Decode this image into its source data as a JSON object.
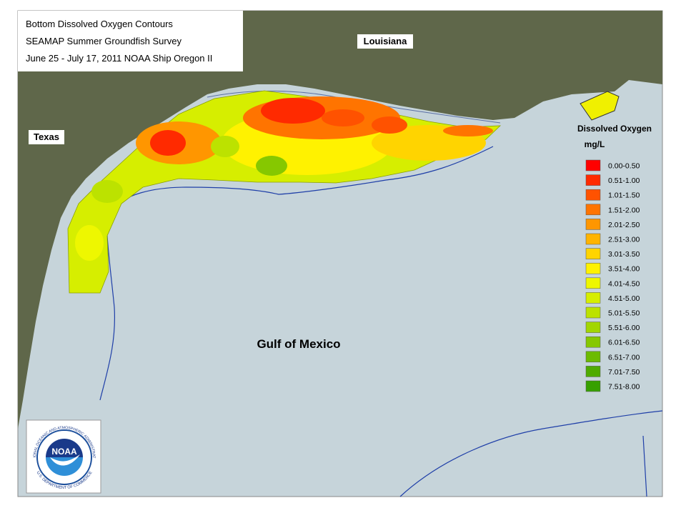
{
  "title_lines": [
    "Bottom Dissolved Oxygen Contours",
    "SEAMAP Summer Groundfish Survey",
    "June 25 - July 17, 2011 NOAA Ship Oregon II"
  ],
  "labels": {
    "louisiana": "Louisiana",
    "texas": "Texas",
    "gulf": "Gulf of Mexico"
  },
  "legend": {
    "title": "Dissolved Oxygen",
    "unit": "mg/L",
    "items": [
      {
        "label": "0.00-0.50",
        "color": "#ff0000"
      },
      {
        "label": "0.51-1.00",
        "color": "#ff2a00"
      },
      {
        "label": "1.01-1.50",
        "color": "#ff5200"
      },
      {
        "label": "1.51-2.00",
        "color": "#ff7400"
      },
      {
        "label": "2.01-2.50",
        "color": "#ff9600"
      },
      {
        "label": "2.51-3.00",
        "color": "#ffb400"
      },
      {
        "label": "3.01-3.50",
        "color": "#ffd400"
      },
      {
        "label": "3.51-4.00",
        "color": "#fff200"
      },
      {
        "label": "4.01-4.50",
        "color": "#eef700"
      },
      {
        "label": "4.51-5.00",
        "color": "#d6ee00"
      },
      {
        "label": "5.01-5.50",
        "color": "#bce200"
      },
      {
        "label": "5.51-6.00",
        "color": "#a2d600"
      },
      {
        "label": "6.01-6.50",
        "color": "#86c800"
      },
      {
        "label": "6.51-7.00",
        "color": "#6cbb00"
      },
      {
        "label": "7.01-7.50",
        "color": "#4fab00"
      },
      {
        "label": "7.51-8.00",
        "color": "#36a000"
      }
    ]
  },
  "logo": {
    "name": "NOAA",
    "agency": "NATIONAL OCEANIC AND ATMOSPHERIC ADMINISTRATION",
    "department": "U.S. DEPARTMENT OF COMMERCE"
  }
}
